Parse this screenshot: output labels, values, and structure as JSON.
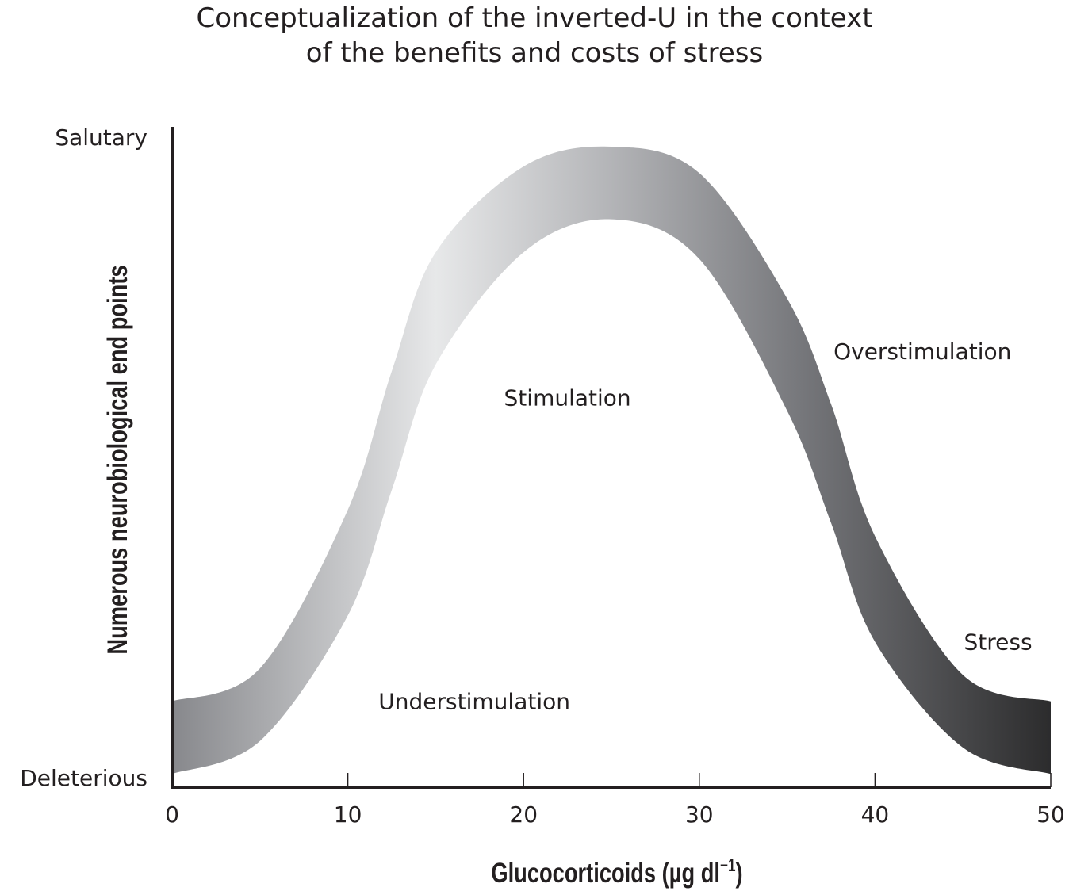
{
  "chart_data": {
    "type": "area",
    "title_lines": [
      "Conceptualization of the inverted-U in the context",
      "of the benefits and costs of stress"
    ],
    "xlabel": "Glucocorticoids (µg dl",
    "xlabel_superscript": "−1",
    "xlabel_suffix": ")",
    "ylabel": "Numerous neurobiological end points",
    "xlim": [
      0,
      50
    ],
    "x_ticks": [
      0,
      10,
      20,
      30,
      40,
      50
    ],
    "x_tick_labels": [
      "0",
      "10",
      "20",
      "30",
      "40",
      "50"
    ],
    "y_range_labels": {
      "top": "Salutary",
      "bottom": "Deleterious"
    },
    "grid": false,
    "series": [
      {
        "shape": "inverted-U band",
        "x": [
          0,
          5,
          10,
          12.5,
          15,
          20,
          25,
          30,
          35,
          37.5,
          40,
          45,
          50
        ],
        "upper": [
          0.13,
          0.18,
          0.42,
          0.63,
          0.81,
          0.94,
          0.97,
          0.93,
          0.74,
          0.58,
          0.38,
          0.17,
          0.13
        ],
        "lower": [
          0.02,
          0.07,
          0.26,
          0.45,
          0.64,
          0.81,
          0.86,
          0.8,
          0.57,
          0.4,
          0.22,
          0.06,
          0.02
        ],
        "gradient": [
          {
            "at": 0.0,
            "color": "#87888c"
          },
          {
            "at": 0.3,
            "color": "#e7e8e9"
          },
          {
            "at": 0.5,
            "color": "#b3b4b7"
          },
          {
            "at": 0.72,
            "color": "#75767a"
          },
          {
            "at": 1.0,
            "color": "#2c2c2d"
          }
        ]
      }
    ],
    "annotations": [
      {
        "text": "Understimulation",
        "x": 17.2,
        "y": 0.13
      },
      {
        "text": "Stimulation",
        "x": 22.5,
        "y": 0.59
      },
      {
        "text": "Overstimulation",
        "x": 42.7,
        "y": 0.66
      },
      {
        "text": "Stress",
        "x": 47.0,
        "y": 0.22
      }
    ],
    "colors": {
      "ink": "#231f20",
      "background": "#ffffff"
    }
  }
}
